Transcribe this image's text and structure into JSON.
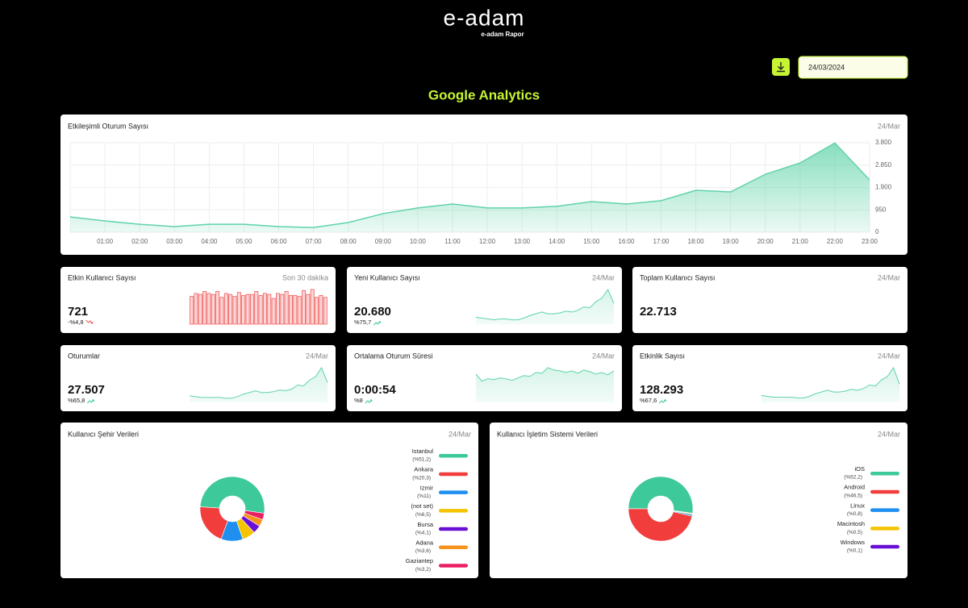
{
  "header": {
    "logo": "e-adam",
    "subtitle": "e-adam Rapor",
    "date": "24/03/2024",
    "title": "Google Analytics"
  },
  "main_chart": {
    "type": "area",
    "title": "Etkileşimli Oturum Sayısı",
    "period": "24/Mar",
    "color": "#5fd3a8",
    "categories": [
      null,
      "01:00",
      "02:00",
      "03:00",
      "04:00",
      "05:00",
      "06:00",
      "07:00",
      "08:00",
      "09:00",
      "10:00",
      "11:00",
      "12:00",
      "13:00",
      "14:00",
      "15:00",
      "16:00",
      "17:00",
      "18:00",
      "19:00",
      "20:00",
      "21:00",
      "22:00",
      "23:00"
    ],
    "values": [
      650,
      480,
      340,
      240,
      340,
      340,
      240,
      200,
      410,
      790,
      1030,
      1200,
      1030,
      1030,
      1100,
      1300,
      1200,
      1340,
      1780,
      1710,
      2460,
      2940,
      3790,
      2220
    ],
    "ylim": [
      0,
      3800
    ],
    "yticks": [
      0,
      950,
      {
        "value": 1900,
        "label": "1.900"
      },
      {
        "value": 2850,
        "label": "2.850"
      },
      {
        "value": 3800,
        "label": "3.800"
      }
    ],
    "grid": true
  },
  "cards": [
    {
      "title": "Etkin Kullanıcı Sayısı",
      "period": "Son 30 dakika",
      "value": "721",
      "change": "-%4,8",
      "trend": "down",
      "spark_type": "bar",
      "color": "#f05a5a",
      "values": [
        28,
        31,
        30,
        33,
        31,
        30,
        33,
        27,
        31,
        30,
        28,
        32,
        29,
        30,
        30,
        33,
        29,
        31,
        30,
        26,
        31,
        30,
        33,
        29,
        29,
        28,
        34,
        30,
        35,
        27,
        29,
        27
      ]
    },
    {
      "title": "Yeni Kullanıcı Sayısı",
      "period": "24/Mar",
      "value": "20.680",
      "change": "%75,7",
      "trend": "up",
      "spark_type": "area",
      "color": "#5fd3a8",
      "values": [
        8,
        7,
        6,
        5,
        6,
        6,
        5,
        5,
        7,
        10,
        12,
        14,
        12,
        12,
        13,
        15,
        14,
        16,
        20,
        19,
        26,
        30,
        40,
        24
      ]
    },
    {
      "title": "Toplam Kullanıcı Sayısı",
      "period": "24/Mar",
      "value": "22.713"
    },
    {
      "title": "Oturumlar",
      "period": "24/Mar",
      "value": "27.507",
      "change": "%65,8",
      "trend": "up",
      "spark_type": "area",
      "color": "#5fd3a8",
      "values": [
        8,
        7,
        6,
        6,
        6,
        6,
        5,
        5,
        7,
        10,
        12,
        14,
        12,
        12,
        13,
        15,
        14,
        16,
        21,
        20,
        27,
        31,
        42,
        24
      ]
    },
    {
      "title": "Ortalama Oturum Süresi",
      "period": "24/Mar",
      "value": "0:00:54",
      "change": "%8",
      "trend": "up",
      "spark_type": "area",
      "color": "#5fd3a8",
      "values": [
        36,
        27,
        30,
        29,
        31,
        30,
        28,
        31,
        34,
        33,
        38,
        37,
        44,
        41,
        40,
        38,
        40,
        37,
        41,
        39,
        36,
        38,
        35,
        40
      ]
    },
    {
      "title": "Etkinlik Sayısı",
      "period": "24/Mar",
      "value": "128.293",
      "change": "%67,6",
      "trend": "up",
      "spark_type": "area",
      "color": "#5fd3a8",
      "values": [
        8,
        7,
        6,
        6,
        6,
        6,
        5,
        5,
        7,
        10,
        12,
        14,
        12,
        12,
        13,
        15,
        14,
        16,
        20,
        19,
        26,
        30,
        40,
        21
      ]
    }
  ],
  "pies": [
    {
      "type": "donut",
      "title": "Kullanıcı Şehir Verileri",
      "period": "24/Mar",
      "labels": [
        "Istanbul",
        "Ankara",
        "Izmir",
        "(not set)",
        "Bursa",
        "Adana",
        "Gaziantep"
      ],
      "values": [
        51.2,
        20.3,
        11,
        6.5,
        4.1,
        3.6,
        3.2
      ],
      "value_labels": [
        "(%51,2)",
        "(%20,3)",
        "(%11)",
        "(%6,5)",
        "(%4,1)",
        "(%3,6)",
        "(%3,2)"
      ],
      "colors": [
        "#3ec99b",
        "#f23d3d",
        "#1e8fef",
        "#f5c400",
        "#6a10d6",
        "#f7941d",
        "#ea1e63"
      ]
    },
    {
      "type": "donut",
      "title": "Kullanıcı İşletim Sistemi Verileri",
      "period": "24/Mar",
      "labels": [
        "iOS",
        "Android",
        "Linux",
        "Macintosh",
        "Windows"
      ],
      "values": [
        52.2,
        46.5,
        0.8,
        0.5,
        0.1
      ],
      "value_labels": [
        "(%52,2)",
        "(%46,5)",
        "(%0,8)",
        "(%0,5)",
        "(%0,1)"
      ],
      "colors": [
        "#3ec99b",
        "#f23d3d",
        "#1e8fef",
        "#f5c400",
        "#6a10d6"
      ]
    }
  ]
}
